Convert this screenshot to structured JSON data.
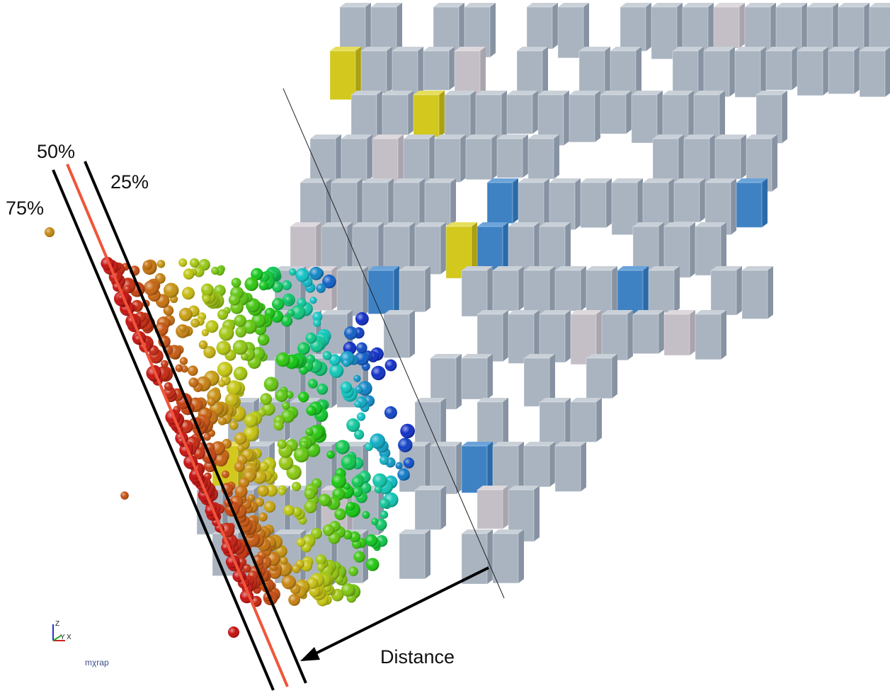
{
  "labels": {
    "p50": "50%",
    "p25": "25%",
    "p75": "75%",
    "distance": "Distance"
  },
  "logo": "mχrap",
  "axes": {
    "z": "Z",
    "y": "Y",
    "x": "X"
  }
}
